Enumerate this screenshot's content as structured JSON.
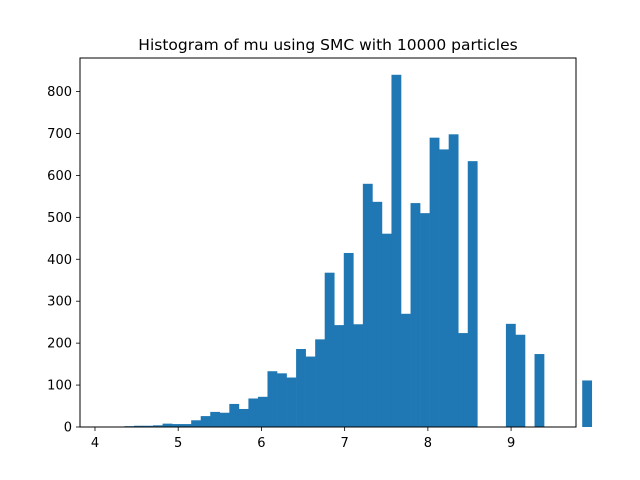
{
  "chart_data": {
    "type": "bar",
    "title": "Histogram of mu using SMC with 10000 particles",
    "xlabel": "",
    "ylabel": "",
    "xlim": [
      3.82,
      9.78
    ],
    "ylim": [
      0,
      880
    ],
    "bin_width": 0.1146,
    "bin_edges_start": 4.01,
    "values": [
      1,
      0,
      1,
      2,
      3,
      3,
      4,
      8,
      7,
      7,
      16,
      26,
      36,
      34,
      55,
      43,
      68,
      72,
      133,
      128,
      118,
      186,
      168,
      209,
      368,
      243,
      415,
      245,
      580,
      537,
      461,
      840,
      270,
      534,
      510,
      690,
      662,
      698,
      224,
      634,
      0,
      0,
      0,
      246,
      220,
      0,
      174,
      0,
      0,
      0,
      0,
      111
    ],
    "xticks": [
      4,
      5,
      6,
      7,
      8,
      9
    ],
    "xtick_labels": [
      "4",
      "5",
      "6",
      "7",
      "8",
      "9"
    ],
    "yticks": [
      0,
      100,
      200,
      300,
      400,
      500,
      600,
      700,
      800
    ],
    "ytick_labels": [
      "0",
      "100",
      "200",
      "300",
      "400",
      "500",
      "600",
      "700",
      "800"
    ],
    "bar_color": "#1f77b4",
    "grid": false,
    "legend": "none"
  }
}
